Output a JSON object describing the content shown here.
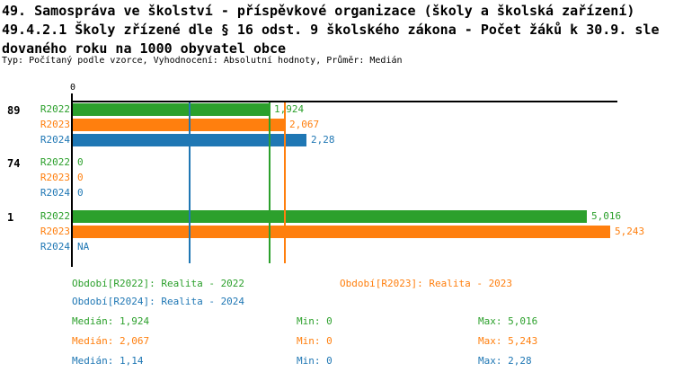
{
  "header": {
    "title_line1": "49. Samospráva ve školství - příspěvkové organizace (školy a školská zařízení)",
    "title_line2": "49.4.2.1 Školy zřízené dle § 16 odst. 9 školského zákona - Počet žáků k 30.9. sle",
    "title_line3": "dovaného roku na 1000 obyvatel obce",
    "subtitle": "Typ: Počítaný podle vzorce, Vyhodnocení: Absolutní hodnoty, Průměr: Medián"
  },
  "colors": {
    "green": "#2ca02c",
    "orange": "#ff7f0e",
    "blue": "#1f77b4",
    "axis": "#000000"
  },
  "chart_data": {
    "type": "bar",
    "orientation": "horizontal",
    "title": "49.4.2.1 Školy zřízené dle § 16 odst. 9 školského zákona - Počet žáků k 30.9. sledovaného roku na 1000 obyvatel obce",
    "xlim": [
      0,
      5.32
    ],
    "zero_tick_label": "0",
    "grid": false,
    "legend_position": "bottom",
    "groups": [
      {
        "label": "89",
        "bars": [
          {
            "series": "R2022",
            "value": 1.924,
            "value_label": "1,924"
          },
          {
            "series": "R2023",
            "value": 2.067,
            "value_label": "2,067"
          },
          {
            "series": "R2024",
            "value": 2.28,
            "value_label": "2,28"
          }
        ]
      },
      {
        "label": "74",
        "bars": [
          {
            "series": "R2022",
            "value": 0,
            "value_label": "0"
          },
          {
            "series": "R2023",
            "value": 0,
            "value_label": "0"
          },
          {
            "series": "R2024",
            "value": 0,
            "value_label": "0"
          }
        ]
      },
      {
        "label": "1",
        "bars": [
          {
            "series": "R2022",
            "value": 5.016,
            "value_label": "5,016"
          },
          {
            "series": "R2023",
            "value": 5.243,
            "value_label": "5,243"
          },
          {
            "series": "R2024",
            "value": null,
            "value_label": "NA"
          }
        ]
      }
    ],
    "series": [
      {
        "key": "R2022",
        "color": "#2ca02c",
        "legend_label": "Období[R2022]: Realita - 2022",
        "median": 1.924,
        "stats": {
          "median_label": "Medián: 1,924",
          "min_label": "Min: 0",
          "max_label": "Max: 5,016"
        }
      },
      {
        "key": "R2023",
        "color": "#ff7f0e",
        "legend_label": "Období[R2023]: Realita - 2023",
        "median": 2.067,
        "stats": {
          "median_label": "Medián: 2,067",
          "min_label": "Min: 0",
          "max_label": "Max: 5,243"
        }
      },
      {
        "key": "R2024",
        "color": "#1f77b4",
        "legend_label": "Období[R2024]: Realita - 2024",
        "median": 1.14,
        "stats": {
          "median_label": "Medián: 1,14",
          "min_label": "Min: 0",
          "max_label": "Max: 2,28"
        }
      }
    ]
  }
}
